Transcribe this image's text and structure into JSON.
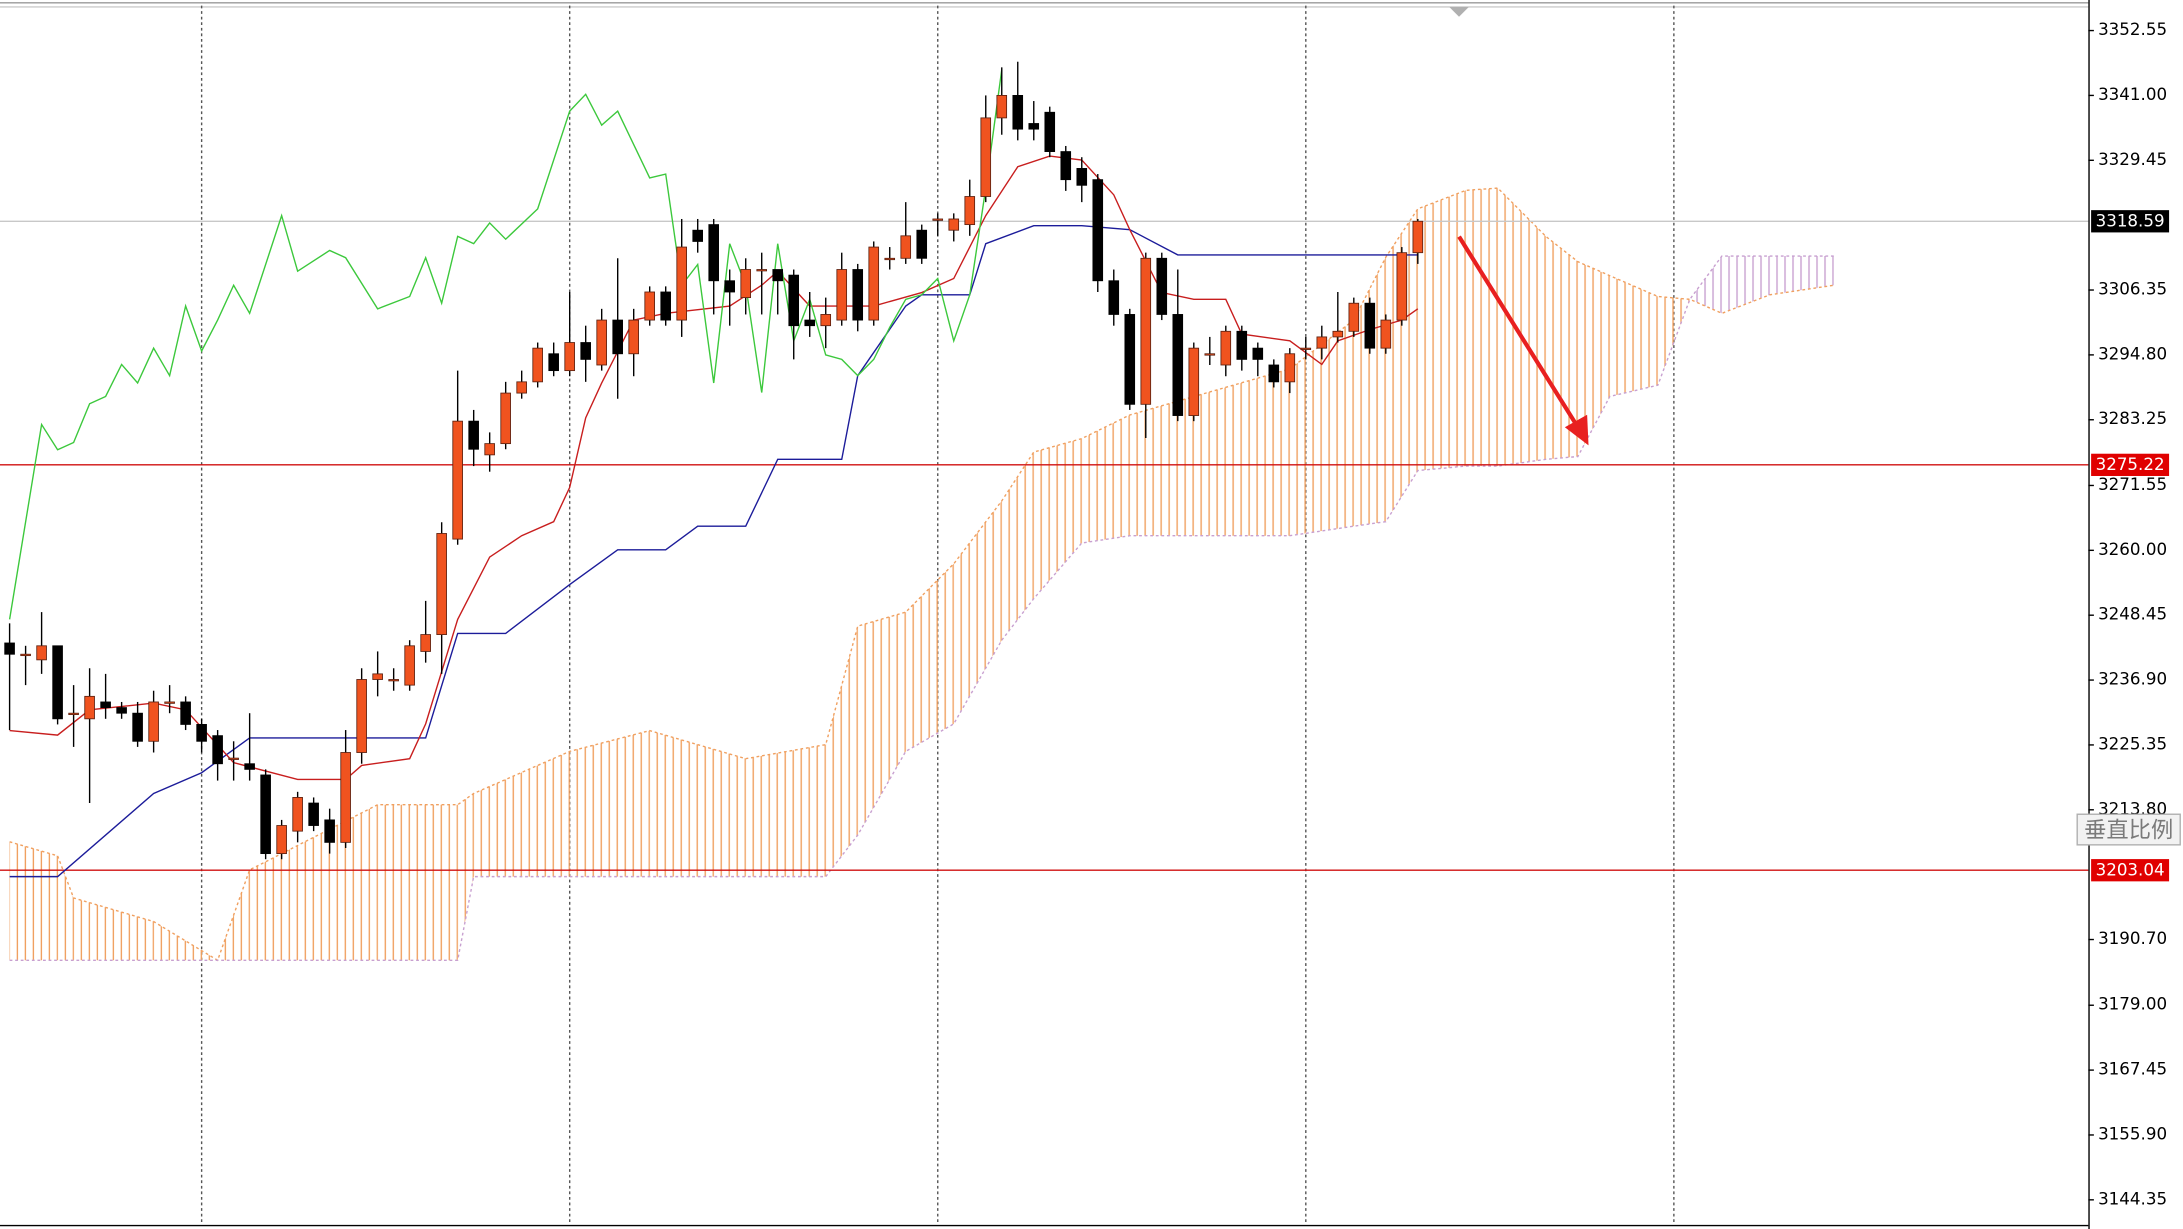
{
  "chart_data": {
    "type": "candlestick",
    "x": [
      0,
      1,
      2,
      3,
      4,
      5,
      6,
      7,
      8,
      9,
      10,
      11,
      12,
      13,
      14,
      15,
      16,
      17,
      18,
      19,
      20,
      21,
      22,
      23,
      24,
      25,
      26,
      27,
      28,
      29,
      30,
      31,
      32,
      33,
      34,
      35,
      36,
      37,
      38,
      39,
      40,
      41,
      42,
      43,
      44,
      45,
      46,
      47,
      48,
      49,
      50,
      51,
      52,
      53,
      54,
      55,
      56,
      57,
      58,
      59,
      60,
      61,
      62,
      63,
      64,
      65,
      66,
      67,
      68,
      69,
      70,
      71,
      72,
      73,
      74,
      75,
      76,
      77,
      78,
      79,
      80,
      81,
      82,
      83,
      84,
      85,
      86,
      87,
      88
    ],
    "open": [
      3243.5,
      3241.5,
      3240.5,
      3243,
      3231,
      3230,
      3233,
      3232,
      3231,
      3226,
      3233,
      3233,
      3229,
      3227,
      3223,
      3222,
      3220,
      3206,
      3210,
      3215,
      3212,
      3208,
      3224,
      3237,
      3237,
      3236,
      3242,
      3245,
      3262,
      3283,
      3277,
      3279,
      3288,
      3290,
      3295,
      3292,
      3297,
      3293,
      3301,
      3295,
      3301,
      3306,
      3301,
      3317,
      3318,
      3308,
      3305,
      3310,
      3310,
      3309,
      3301,
      3300,
      3301,
      3310,
      3301,
      3312,
      3312,
      3317,
      3319,
      3317,
      3318,
      3323,
      3337,
      3341,
      3336,
      3338,
      3331,
      3328,
      3326,
      3308,
      3302,
      3286,
      3312,
      3302,
      3284,
      3295,
      3293,
      3299,
      3296,
      3293,
      3290,
      3296,
      3296,
      3298,
      3299,
      3304,
      3296,
      3301,
      3313
    ],
    "high": [
      3247,
      3243,
      3249,
      3243,
      3236,
      3239,
      3238,
      3233,
      3233,
      3235,
      3236,
      3234,
      3230,
      3228,
      3226,
      3231,
      3221,
      3212,
      3217,
      3216,
      3214,
      3228,
      3239,
      3242,
      3239,
      3244,
      3251,
      3265,
      3292,
      3285,
      3281,
      3290,
      3292,
      3297,
      3297,
      3306,
      3300,
      3303,
      3312,
      3303,
      3307,
      3307,
      3319,
      3319,
      3319,
      3310,
      3312,
      3313,
      3310,
      3310,
      3306,
      3305,
      3313,
      3311,
      3315,
      3314,
      3322,
      3318,
      3320,
      3320,
      3326,
      3341,
      3346,
      3347,
      3340,
      3339,
      3332,
      3330,
      3327,
      3310,
      3303,
      3313,
      3313,
      3310,
      3297,
      3298,
      3300,
      3300,
      3297,
      3294,
      3296,
      3298,
      3300,
      3306,
      3305,
      3305,
      3302,
      3314,
      3319
    ],
    "low": [
      3228,
      3236,
      3238,
      3229,
      3225,
      3215,
      3230,
      3230,
      3225,
      3224,
      3231,
      3228,
      3224,
      3219,
      3219,
      3219,
      3205,
      3205,
      3208,
      3210,
      3206,
      3207,
      3222,
      3234,
      3235,
      3235,
      3240,
      3238,
      3261,
      3275,
      3274,
      3278,
      3287,
      3289,
      3291,
      3291,
      3290,
      3292,
      3287,
      3291,
      3300,
      3300,
      3298,
      3313,
      3302,
      3300,
      3302,
      3302,
      3302,
      3294,
      3298,
      3296,
      3300,
      3299,
      3300,
      3310,
      3311,
      3311,
      3316,
      3315,
      3316,
      3322,
      3334,
      3333,
      3333,
      3330,
      3324,
      3322,
      3306,
      3300,
      3285,
      3280,
      3301,
      3283,
      3283,
      3293,
      3291,
      3292,
      3291,
      3289,
      3288,
      3294,
      3294,
      3297,
      3298,
      3295,
      3295,
      3300,
      3311
    ],
    "close": [
      3241.5,
      3241.5,
      3243,
      3230,
      3231,
      3234,
      3232,
      3231,
      3226,
      3233,
      3233,
      3229,
      3226,
      3222,
      3223,
      3221,
      3206,
      3211,
      3216,
      3211,
      3208,
      3224,
      3237,
      3238,
      3237,
      3243,
      3245,
      3263,
      3283,
      3278,
      3279,
      3288,
      3290,
      3296,
      3292,
      3297,
      3294,
      3301,
      3295,
      3301,
      3306,
      3301,
      3314,
      3315,
      3308,
      3306,
      3310,
      3310,
      3308,
      3300,
      3300,
      3302,
      3310,
      3301,
      3314,
      3312,
      3316,
      3312,
      3319,
      3319,
      3323,
      3337,
      3341,
      3335,
      3335,
      3331,
      3326,
      3325,
      3308,
      3302,
      3286,
      3312,
      3302,
      3284,
      3296,
      3295,
      3299,
      3294,
      3294,
      3290,
      3295,
      3296,
      3298,
      3299,
      3304,
      3296,
      3301,
      3313,
      3318.59
    ],
    "up_color": "#f0531f",
    "down_color": "#000000",
    "xlim": [
      -0.6,
      129.9
    ],
    "ylim": [
      3139.9,
      3357.0
    ],
    "yticks": [
      3352.55,
      {
        "value": 3341.0,
        "label": "3341.00"
      },
      3329.45,
      3306.35,
      {
        "value": 3294.8,
        "label": "3294.80"
      },
      3283.25,
      3271.55,
      {
        "value": 3260.0,
        "label": "3260.00"
      },
      3248.45,
      {
        "value": 3236.9,
        "label": "3236.90"
      },
      3225.35,
      {
        "value": 3213.8,
        "label": "3213.80"
      },
      {
        "value": 3190.7,
        "label": "3190.70"
      },
      {
        "value": 3179.0,
        "label": "3179.00"
      },
      3167.45,
      {
        "value": 3155.9,
        "label": "3155.90"
      },
      3144.35
    ],
    "x_grid": [
      12,
      35,
      58,
      81,
      104
    ],
    "tenkan": {
      "color": "#c81e1e",
      "x": [
        0,
        3,
        5,
        9,
        11,
        14,
        18,
        21,
        22,
        25,
        26,
        28,
        30,
        32,
        34,
        35,
        36,
        37,
        39,
        41,
        45,
        47,
        48,
        50,
        54,
        57,
        59,
        61,
        63,
        65,
        67,
        69,
        70,
        72,
        74,
        76,
        77,
        80,
        82,
        83,
        85,
        87,
        88
      ],
      "values": [
        3227.9,
        3227.1,
        3231.6,
        3232.8,
        3231.6,
        3222.2,
        3219.2,
        3219.2,
        3221.7,
        3222.9,
        3229.1,
        3247.7,
        3258.8,
        3262.6,
        3265.1,
        3271.2,
        3283.6,
        3289.8,
        3301.0,
        3302.2,
        3303.5,
        3307.2,
        3309.7,
        3303.5,
        3303.5,
        3305.9,
        3308.4,
        3319.6,
        3328.3,
        3330.2,
        3329.5,
        3323.3,
        3317.1,
        3305.9,
        3304.7,
        3304.7,
        3298.5,
        3297.3,
        3293.1,
        3297.3,
        3299.3,
        3301.0,
        3303.0
      ]
    },
    "kijun": {
      "color": "#1c1c9a",
      "x": [
        0,
        3,
        9,
        12,
        15,
        26,
        28,
        31,
        35,
        38,
        41,
        43,
        46,
        48,
        52,
        53,
        56,
        57,
        60,
        61,
        64,
        67,
        70,
        73,
        88
      ],
      "values": [
        3201.9,
        3201.9,
        3216.7,
        3220.4,
        3226.6,
        3226.6,
        3245.2,
        3245.2,
        3253.9,
        3260.1,
        3260.1,
        3264.3,
        3264.3,
        3276.2,
        3276.2,
        3291.1,
        3303.5,
        3305.5,
        3305.5,
        3314.6,
        3317.8,
        3317.8,
        3317.1,
        3312.6,
        3312.6
      ]
    },
    "chikou": {
      "color": "#3cc83c",
      "x": [
        0,
        2,
        3,
        4,
        5,
        6,
        7,
        8,
        9,
        10,
        11,
        12,
        13,
        14,
        15,
        17,
        18,
        20,
        21,
        23,
        25,
        26,
        27,
        28,
        29,
        30,
        31,
        33,
        35,
        36,
        37,
        38,
        40,
        41,
        42,
        43,
        44,
        45,
        46,
        47,
        48,
        49,
        50,
        51,
        52,
        53,
        54,
        55,
        56,
        57,
        58,
        59,
        60,
        61,
        62
      ],
      "values": [
        3247.7,
        3282.4,
        3277.9,
        3279.2,
        3286.1,
        3287.4,
        3293.1,
        3289.8,
        3296.0,
        3291.1,
        3303.5,
        3295.5,
        3301.0,
        3307.2,
        3302.2,
        3319.6,
        3309.7,
        3313.4,
        3312.1,
        3303.0,
        3305.2,
        3312.1,
        3304.0,
        3315.9,
        3314.6,
        3318.3,
        3315.4,
        3320.8,
        3338.2,
        3341.2,
        3335.7,
        3338.2,
        3326.3,
        3327.0,
        3307.2,
        3310.9,
        3289.8,
        3314.6,
        3307.2,
        3288.1,
        3314.6,
        3297.3,
        3304.7,
        3294.8,
        3294.0,
        3291.1,
        3294.0,
        3299.7,
        3304.7,
        3305.5,
        3308.4,
        3297.3,
        3305.5,
        3324.5,
        3345.6
      ]
    },
    "span_a": {
      "color": "#f0a060",
      "x": [
        0,
        3,
        4,
        9,
        13,
        15,
        23,
        28,
        29,
        35,
        40,
        46,
        51,
        53,
        56,
        59,
        62,
        64,
        67,
        70,
        80,
        84,
        86,
        88,
        91,
        93,
        96,
        98,
        100,
        103,
        105,
        107,
        110,
        114
      ],
      "values": [
        3208.1,
        3205.6,
        3198.1,
        3193.9,
        3187.0,
        3203.1,
        3214.7,
        3214.7,
        3216.7,
        3224.2,
        3227.9,
        3222.9,
        3225.4,
        3246.5,
        3249.0,
        3257.6,
        3268.8,
        3277.5,
        3279.9,
        3284.1,
        3292.3,
        3301.0,
        3312.2,
        3320.8,
        3324.1,
        3324.5,
        3315.9,
        3311.4,
        3308.9,
        3305.2,
        3304.7,
        3302.2,
        3305.5,
        3307.2
      ]
    },
    "span_b": {
      "color": "#c8a0d0",
      "x": [
        0,
        3,
        4,
        9,
        13,
        15,
        23,
        28,
        29,
        35,
        40,
        46,
        51,
        53,
        56,
        59,
        62,
        64,
        67,
        70,
        80,
        84,
        86,
        88,
        91,
        93,
        96,
        98,
        100,
        103,
        105,
        107,
        110,
        114
      ],
      "values": [
        3187.0,
        3187.0,
        3187.0,
        3187.0,
        3187.0,
        3187.0,
        3187.0,
        3187.0,
        3201.9,
        3201.9,
        3201.9,
        3201.9,
        3201.9,
        3209.3,
        3224.2,
        3229.1,
        3244.0,
        3251.4,
        3261.3,
        3262.6,
        3262.6,
        3264.3,
        3265.1,
        3274.2,
        3275.0,
        3275.0,
        3276.2,
        3276.7,
        3287.4,
        3289.4,
        3304.7,
        3312.4,
        3312.4,
        3312.4
      ]
    },
    "cloud_up_color": "#f0a060",
    "cloud_down_color": "#c8a0d0",
    "price_lines": [
      {
        "value": 3318.59,
        "color": "#c8c8c8",
        "tag_color": "#000000"
      },
      {
        "value": 3275.22,
        "color": "#d01010",
        "tag_color": "#e00000"
      },
      {
        "value": 3203.04,
        "color": "#d01010",
        "tag_color": "#e00000"
      }
    ]
  },
  "scale_button": "垂直比例"
}
